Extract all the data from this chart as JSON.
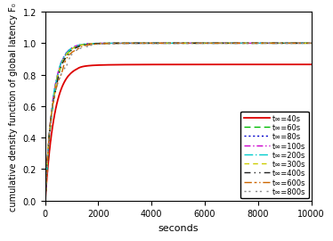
{
  "title": "",
  "xlabel": "seconds",
  "ylabel": "cumulative density function of global latency F₀",
  "xlim": [
    0,
    10000
  ],
  "ylim": [
    0,
    1.2
  ],
  "yticks": [
    0,
    0.2,
    0.4,
    0.6,
    0.8,
    1.0,
    1.2
  ],
  "xticks": [
    0,
    2000,
    4000,
    6000,
    8000,
    10000
  ],
  "series": [
    {
      "label": "t∞=40s",
      "color": "#dd0000",
      "lw": 1.3,
      "dashes": [],
      "params": {
        "mu": 7.8,
        "sigma": 1.2,
        "sat": 0.865,
        "n_steps": 1,
        "step_mult": 1.0
      }
    },
    {
      "label": "t∞=60s",
      "color": "#00bb00",
      "lw": 1.0,
      "dashes": [
        5,
        3
      ],
      "params": {
        "mu": 6.2,
        "sigma": 1.0,
        "sat": 1.0,
        "n_steps": 1,
        "step_mult": 1.0
      }
    },
    {
      "label": "t∞=80s",
      "color": "#0000cc",
      "lw": 1.0,
      "dashes": [
        1.5,
        2
      ],
      "params": {
        "mu": 5.8,
        "sigma": 1.0,
        "sat": 1.0,
        "n_steps": 1,
        "step_mult": 1.0
      }
    },
    {
      "label": "t∞=100s",
      "color": "#cc00cc",
      "lw": 1.0,
      "dashes": [
        5,
        2,
        1,
        2
      ],
      "params": {
        "mu": 5.5,
        "sigma": 1.0,
        "sat": 1.0,
        "n_steps": 1,
        "step_mult": 1.0
      }
    },
    {
      "label": "t∞=200s",
      "color": "#00cccc",
      "lw": 1.0,
      "dashes": [
        7,
        2,
        1,
        2
      ],
      "params": {
        "mu": 5.0,
        "sigma": 0.9,
        "sat": 1.0,
        "n_steps": 1,
        "step_mult": 1.0
      }
    },
    {
      "label": "t∞=300s",
      "color": "#cccc00",
      "lw": 1.0,
      "dashes": [
        4,
        3
      ],
      "params": {
        "mu": 4.7,
        "sigma": 0.9,
        "sat": 1.0,
        "n_steps": 1,
        "step_mult": 1.0
      }
    },
    {
      "label": "t∞=400s",
      "color": "#222222",
      "lw": 1.0,
      "dashes": [
        5,
        3,
        1,
        3,
        1,
        3
      ],
      "params": {
        "mu": 4.5,
        "sigma": 0.85,
        "sat": 1.0,
        "n_steps": 1,
        "step_mult": 1.0
      }
    },
    {
      "label": "t∞=600s",
      "color": "#cc6600",
      "lw": 1.0,
      "dashes": [
        6,
        2,
        2,
        2,
        1,
        2
      ],
      "params": {
        "mu": 4.3,
        "sigma": 0.85,
        "sat": 1.0,
        "n_steps": 1,
        "step_mult": 1.0
      }
    },
    {
      "label": "t∞=800s",
      "color": "#888888",
      "lw": 1.0,
      "dashes": [
        1.5,
        2,
        1.5,
        4
      ],
      "params": {
        "mu": 4.2,
        "sigma": 0.85,
        "sat": 1.0,
        "n_steps": 1,
        "step_mult": 1.0
      }
    }
  ],
  "background_color": "#ffffff",
  "figsize": [
    3.66,
    2.62
  ],
  "dpi": 100
}
